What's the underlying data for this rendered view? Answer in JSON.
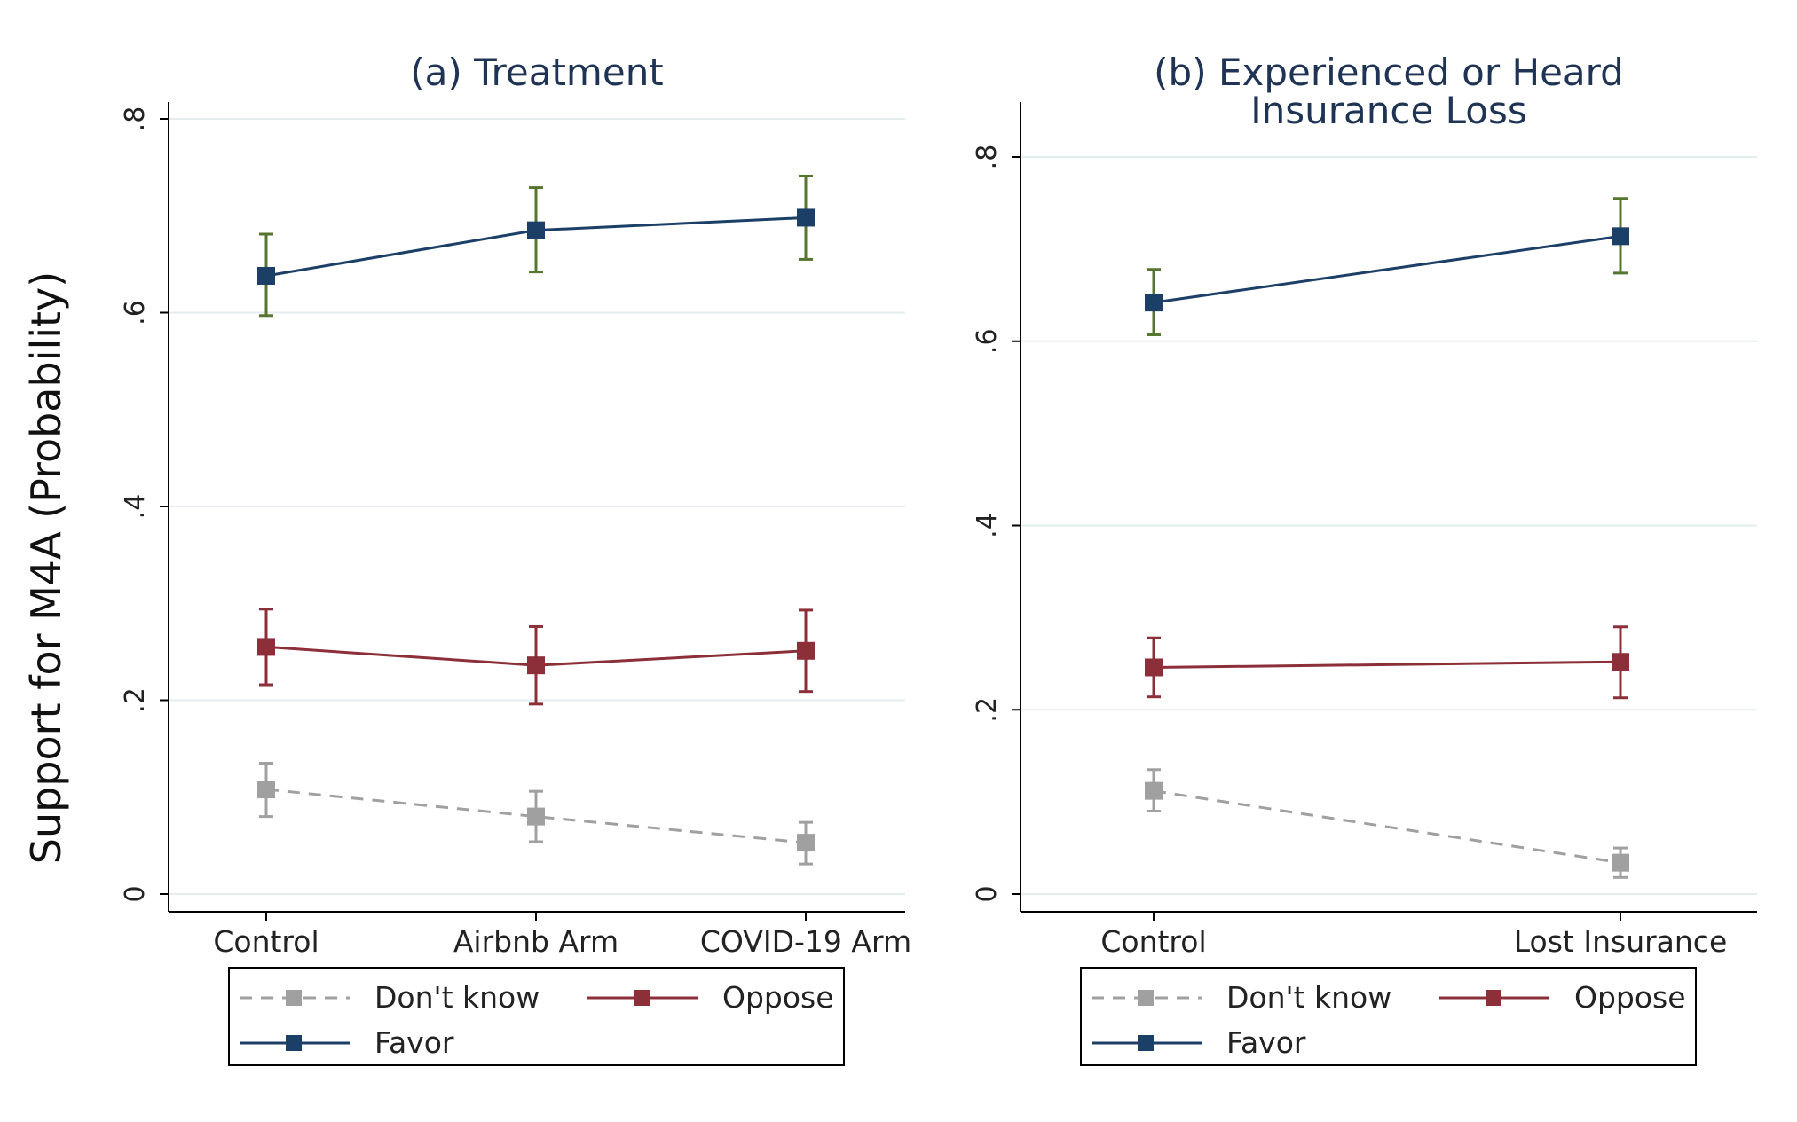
{
  "ylabel": "Support for M4A (Probability)",
  "colors": {
    "dont_know": "#a0a0a0",
    "oppose": "#8c2f39",
    "favor": "#1b3f66",
    "ci_favor": "#56752f",
    "grid": "#e3eded",
    "axis": "#000000"
  },
  "y_ticks": [
    {
      "value": 0,
      "label": "0"
    },
    {
      "value": 0.2,
      "label": ".2"
    },
    {
      "value": 0.4,
      "label": ".4"
    },
    {
      "value": 0.6,
      "label": ".6"
    },
    {
      "value": 0.8,
      "label": ".8"
    }
  ],
  "legend": {
    "dont_know": "Don't know",
    "oppose": "Oppose",
    "favor": "Favor"
  },
  "chart_data": [
    {
      "type": "line",
      "title": "(a) Treatment",
      "categories": [
        "Control",
        "Airbnb Arm",
        "COVID-19 Arm"
      ],
      "ylim": [
        0,
        0.8
      ],
      "grid": true,
      "legend_position": "bottom",
      "series": [
        {
          "key": "dont_know",
          "name": "Don't know",
          "values": [
            0.108,
            0.08,
            0.053
          ],
          "ci_low": [
            0.08,
            0.054,
            0.031
          ],
          "ci_high": [
            0.135,
            0.106,
            0.074
          ],
          "dashed": true
        },
        {
          "key": "oppose",
          "name": "Oppose",
          "values": [
            0.255,
            0.236,
            0.251
          ],
          "ci_low": [
            0.216,
            0.196,
            0.209
          ],
          "ci_high": [
            0.294,
            0.276,
            0.293
          ],
          "dashed": false
        },
        {
          "key": "favor",
          "name": "Favor",
          "values": [
            0.638,
            0.685,
            0.698
          ],
          "ci_low": [
            0.597,
            0.642,
            0.655
          ],
          "ci_high": [
            0.681,
            0.729,
            0.741
          ],
          "dashed": false
        }
      ]
    },
    {
      "type": "line",
      "title": "(b) Experienced or Heard Insurance Loss",
      "title_lines": [
        "(b) Experienced or Heard",
        "Insurance Loss"
      ],
      "categories": [
        "Control",
        "Lost Insurance"
      ],
      "ylim": [
        0,
        0.8
      ],
      "grid": true,
      "legend_position": "bottom",
      "series": [
        {
          "key": "dont_know",
          "name": "Don't know",
          "values": [
            0.112,
            0.034
          ],
          "ci_low": [
            0.09,
            0.018
          ],
          "ci_high": [
            0.135,
            0.05
          ],
          "dashed": true
        },
        {
          "key": "oppose",
          "name": "Oppose",
          "values": [
            0.246,
            0.252
          ],
          "ci_low": [
            0.214,
            0.213
          ],
          "ci_high": [
            0.278,
            0.29
          ],
          "dashed": false
        },
        {
          "key": "favor",
          "name": "Favor",
          "values": [
            0.642,
            0.714
          ],
          "ci_low": [
            0.607,
            0.674
          ],
          "ci_high": [
            0.678,
            0.755
          ],
          "dashed": false
        }
      ]
    }
  ]
}
